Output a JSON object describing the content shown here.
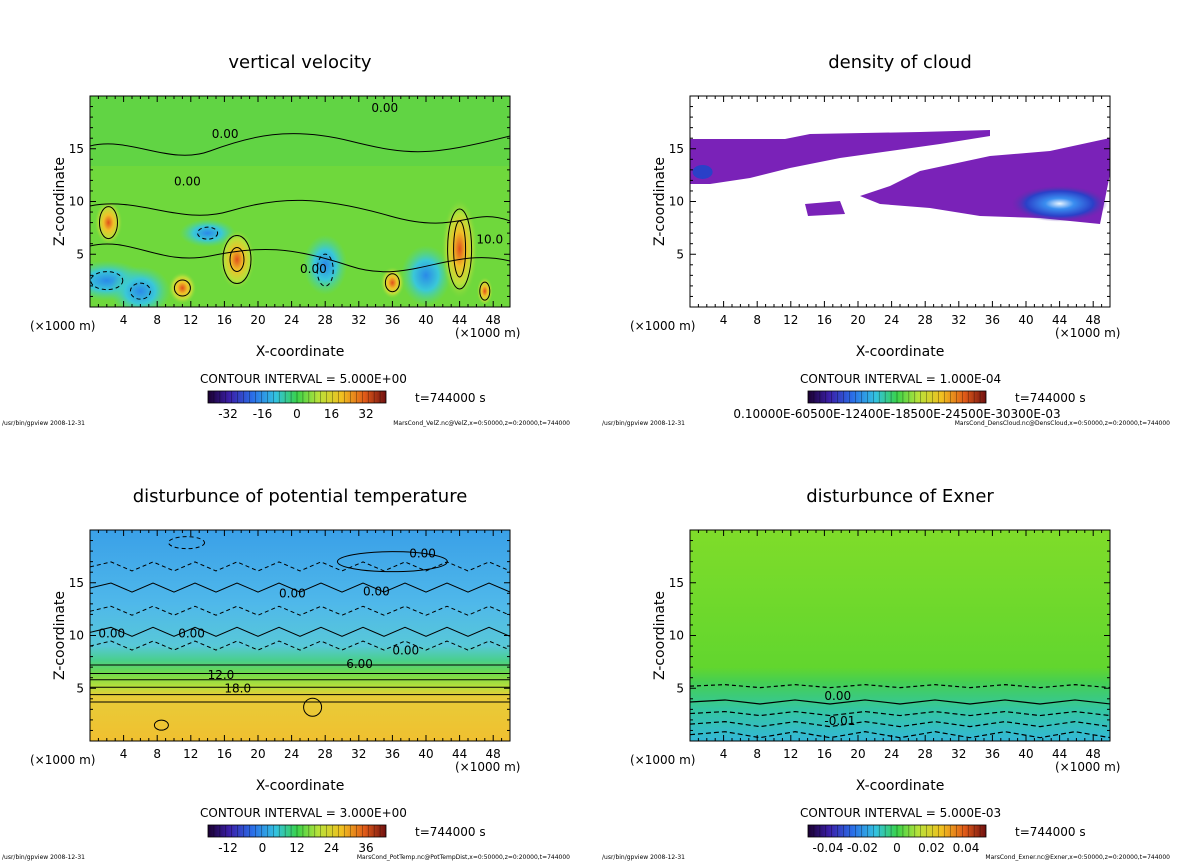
{
  "chart_data": [
    {
      "type": "heatmap",
      "title": "vertical velocity",
      "xlabel": "X-coordinate",
      "ylabel": "Z-coordinate",
      "x_unit": "(×1000 m)",
      "x_ticks": [
        "4",
        "8",
        "12",
        "16",
        "20",
        "24",
        "28",
        "32",
        "36",
        "40",
        "44",
        "48"
      ],
      "y_ticks": [
        "5",
        "10",
        "15"
      ],
      "xlim": [
        0,
        50
      ],
      "ylim": [
        0,
        20
      ],
      "contour_interval": "CONTOUR INTERVAL = 5.000E+00",
      "colorbar_ticks": [
        "-32",
        "-16",
        "0",
        "16",
        "32"
      ],
      "time": "t=744000 s",
      "footer_left": "/usr/bin/gpview  2008-12-31",
      "footer_right": "MarsCond_VelZ.nc@VelZ,x=0:50000,z=0:20000,t=744000",
      "contour_labels": [
        "0.00",
        "0.00",
        "0.00",
        "0.00",
        "10.0"
      ],
      "style": "rainbow"
    },
    {
      "type": "heatmap",
      "title": "density of cloud",
      "xlabel": "X-coordinate",
      "ylabel": "Z-coordinate",
      "x_unit": "(×1000 m)",
      "x_ticks": [
        "4",
        "8",
        "12",
        "16",
        "20",
        "24",
        "28",
        "32",
        "36",
        "40",
        "44",
        "48"
      ],
      "y_ticks": [
        "5",
        "10",
        "15"
      ],
      "xlim": [
        0,
        50
      ],
      "ylim": [
        0,
        20
      ],
      "contour_interval": "CONTOUR INTERVAL = 1.000E-04",
      "colorbar_ticks": [
        "0.10000E-60500E-12400E-18500E-24500E-30300E-03"
      ],
      "time": "t=744000 s",
      "footer_left": "/usr/bin/gpview  2008-12-31",
      "footer_right": "MarsCond_DensCloud.nc@DensCloud,x=0:50000,z=0:20000,t=744000",
      "contour_labels": [],
      "style": "cloud"
    },
    {
      "type": "heatmap",
      "title": "disturbunce of potential temperature",
      "xlabel": "X-coordinate",
      "ylabel": "Z-coordinate",
      "x_unit": "(×1000 m)",
      "x_ticks": [
        "4",
        "8",
        "12",
        "16",
        "20",
        "24",
        "28",
        "32",
        "36",
        "40",
        "44",
        "48"
      ],
      "y_ticks": [
        "5",
        "10",
        "15"
      ],
      "xlim": [
        0,
        50
      ],
      "ylim": [
        0,
        20
      ],
      "contour_interval": "CONTOUR INTERVAL = 3.000E+00",
      "colorbar_ticks": [
        "-12",
        "0",
        "12",
        "24",
        "36"
      ],
      "time": "t=744000 s",
      "footer_left": "/usr/bin/gpview  2008-12-31",
      "footer_right": "MarsCond_PotTemp.nc@PotTempDist,x=0:50000,z=0:20000,t=744000",
      "contour_labels": [
        "0.00",
        "0.00",
        "0.00",
        "0.00",
        "0.00",
        "0.00",
        "6.00",
        "12.0",
        "18.0"
      ],
      "style": "temp"
    },
    {
      "type": "heatmap",
      "title": "disturbunce of Exner",
      "xlabel": "X-coordinate",
      "ylabel": "Z-coordinate",
      "x_unit": "(×1000 m)",
      "x_ticks": [
        "4",
        "8",
        "12",
        "16",
        "20",
        "24",
        "28",
        "32",
        "36",
        "40",
        "44",
        "48"
      ],
      "y_ticks": [
        "5",
        "10",
        "15"
      ],
      "xlim": [
        0,
        50
      ],
      "ylim": [
        0,
        20
      ],
      "contour_interval": "CONTOUR INTERVAL = 5.000E-03",
      "colorbar_ticks": [
        "-0.04",
        "-0.02",
        "0",
        "0.02",
        "0.04"
      ],
      "time": "t=744000 s",
      "footer_left": "/usr/bin/gpview  2008-12-31",
      "footer_right": "MarsCond_Exner.nc@Exner,x=0:50000,z=0:20000,t=744000",
      "contour_labels": [
        "0.00",
        "-0.01"
      ],
      "style": "exner"
    }
  ]
}
